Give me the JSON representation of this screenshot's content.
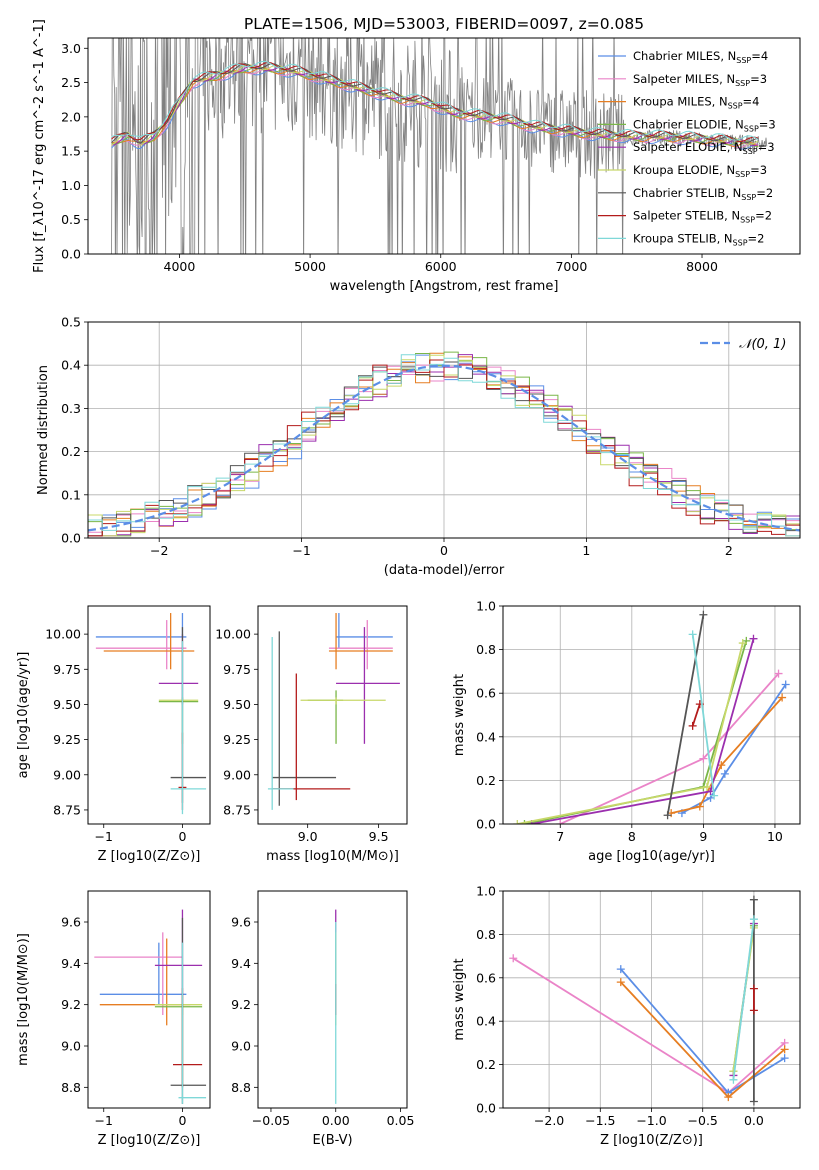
{
  "title": "PLATE=1506, MJD=53003, FIBERID=0097, z=0.085",
  "colors": {
    "c1": "#5b8ee6",
    "c2": "#ea84c8",
    "c3": "#e67e22",
    "c4": "#7ab648",
    "c5": "#9b2fae",
    "c6": "#c8d86a",
    "c7": "#555555",
    "c8": "#b31b1b",
    "c9": "#7fd8d8",
    "obs": "#808080",
    "dash": "#5b8ee6"
  },
  "chart_data": [
    {
      "id": "spectrum",
      "type": "line",
      "xlabel": "wavelength [Angstrom, rest frame]",
      "ylabel": "Flux [f_λ10^-17 erg cm^-2 s^-1 A^-1]",
      "xlim": [
        3300,
        8750
      ],
      "ylim": [
        0,
        3.15
      ],
      "xticks": [
        4000,
        5000,
        6000,
        7000,
        8000
      ],
      "yticks": [
        0.0,
        0.5,
        1.0,
        1.5,
        2.0,
        2.5,
        3.0
      ],
      "legend_position": "upper-right",
      "observed_spectrum_anchors": [
        [
          3480,
          1.6
        ],
        [
          3600,
          1.72
        ],
        [
          3700,
          1.6
        ],
        [
          3800,
          1.7
        ],
        [
          3900,
          1.9
        ],
        [
          4000,
          2.2
        ],
        [
          4100,
          2.5
        ],
        [
          4300,
          2.6
        ],
        [
          4500,
          2.7
        ],
        [
          4700,
          2.7
        ],
        [
          4900,
          2.65
        ],
        [
          5100,
          2.55
        ],
        [
          5300,
          2.45
        ],
        [
          5500,
          2.35
        ],
        [
          5700,
          2.25
        ],
        [
          5900,
          2.2
        ],
        [
          6100,
          2.05
        ],
        [
          6300,
          2.0
        ],
        [
          6500,
          1.95
        ],
        [
          6700,
          1.85
        ],
        [
          6900,
          1.8
        ],
        [
          7100,
          1.75
        ],
        [
          7300,
          1.72
        ],
        [
          7500,
          1.7
        ],
        [
          7700,
          1.7
        ],
        [
          7900,
          1.68
        ],
        [
          8100,
          1.65
        ],
        [
          8300,
          1.62
        ],
        [
          8500,
          1.6
        ]
      ],
      "models": [
        {
          "name": "Chabrier MILES",
          "nssp": 4,
          "color_key": "c1"
        },
        {
          "name": "Salpeter MILES",
          "nssp": 3,
          "color_key": "c2"
        },
        {
          "name": "Kroupa MILES",
          "nssp": 4,
          "color_key": "c3"
        },
        {
          "name": "Chabrier ELODIE",
          "nssp": 3,
          "color_key": "c4"
        },
        {
          "name": "Salpeter ELODIE",
          "nssp": 3,
          "color_key": "c5"
        },
        {
          "name": "Kroupa ELODIE",
          "nssp": 3,
          "color_key": "c6"
        },
        {
          "name": "Chabrier STELIB",
          "nssp": 2,
          "color_key": "c7"
        },
        {
          "name": "Salpeter STELIB",
          "nssp": 2,
          "color_key": "c8"
        },
        {
          "name": "Kroupa STELIB",
          "nssp": 2,
          "color_key": "c9"
        }
      ]
    },
    {
      "id": "residuals",
      "type": "step-histogram",
      "xlabel": "(data-model)/error",
      "ylabel": "Normed distribution",
      "xlim": [
        -2.5,
        2.5
      ],
      "ylim": [
        0,
        0.5
      ],
      "xticks": [
        -2,
        -1,
        0,
        1,
        2
      ],
      "yticks": [
        0.0,
        0.1,
        0.2,
        0.3,
        0.4,
        0.5
      ],
      "grid": true,
      "legend": "𝒩(0, 1)",
      "legend_position": "upper-right",
      "gaussian": {
        "mean": 0,
        "sigma": 1
      }
    },
    {
      "id": "age_vs_z",
      "type": "errorbar",
      "xlabel": "Z [log10(Z/Z⊙)]",
      "ylabel": "age  [log10(age/yr)]",
      "xlim": [
        -1.2,
        0.35
      ],
      "ylim": [
        8.65,
        10.2
      ],
      "xticks": [
        -1,
        0
      ],
      "yticks": [
        8.75,
        9.0,
        9.25,
        9.5,
        9.75,
        10.0
      ],
      "points": [
        {
          "c": "c1",
          "x": 0.0,
          "xl": -1.1,
          "xh": 0.05,
          "y": 9.98,
          "yl": 9.98,
          "yh": 10.15
        },
        {
          "c": "c2",
          "x": -0.2,
          "xl": -1.1,
          "xh": 0.05,
          "y": 9.9,
          "yl": 9.75,
          "yh": 10.1
        },
        {
          "c": "c3",
          "x": -0.15,
          "xl": -1.0,
          "xh": 0.15,
          "y": 9.88,
          "yl": 9.75,
          "yh": 10.15
        },
        {
          "c": "c4",
          "x": 0.0,
          "xl": -0.3,
          "xh": 0.2,
          "y": 9.52,
          "yl": 9.22,
          "yh": 9.55
        },
        {
          "c": "c5",
          "x": 0.0,
          "xl": -0.3,
          "xh": 0.2,
          "y": 9.65,
          "yl": 9.5,
          "yh": 10.0
        },
        {
          "c": "c6",
          "x": 0.0,
          "xl": -0.3,
          "xh": 0.2,
          "y": 9.53,
          "yl": 9.53,
          "yh": 9.55
        },
        {
          "c": "c7",
          "x": 0.0,
          "xl": -0.15,
          "xh": 0.3,
          "y": 8.98,
          "yl": 8.8,
          "yh": 10.05
        },
        {
          "c": "c8",
          "x": 0.0,
          "xl": -0.05,
          "xh": 0.05,
          "y": 8.91,
          "yl": 8.75,
          "yh": 9.3
        },
        {
          "c": "c9",
          "x": 0.0,
          "xl": -0.15,
          "xh": 0.3,
          "y": 8.9,
          "yl": 8.72,
          "yh": 9.95
        }
      ]
    },
    {
      "id": "age_vs_mass",
      "type": "errorbar",
      "xlabel": "mass [log10(M/M⊙)]",
      "ylabel": "",
      "xlim": [
        8.65,
        9.7
      ],
      "ylim": [
        8.65,
        10.2
      ],
      "xticks": [
        9.0,
        9.5
      ],
      "yticks": [
        8.75,
        9.0,
        9.25,
        9.5,
        9.75,
        10.0
      ],
      "points": [
        {
          "c": "c1",
          "x": 9.22,
          "xl": 9.2,
          "xh": 9.6,
          "y": 9.98,
          "yl": 9.9,
          "yh": 10.15
        },
        {
          "c": "c2",
          "x": 9.42,
          "xl": 9.15,
          "xh": 9.6,
          "y": 9.9,
          "yl": 9.75,
          "yh": 10.1
        },
        {
          "c": "c3",
          "x": 9.2,
          "xl": 9.15,
          "xh": 9.6,
          "y": 9.88,
          "yl": 9.75,
          "yh": 10.15
        },
        {
          "c": "c4",
          "x": 9.2,
          "xl": 9.0,
          "xh": 9.25,
          "y": 9.53,
          "yl": 9.22,
          "yh": 9.6
        },
        {
          "c": "c5",
          "x": 9.4,
          "xl": 9.2,
          "xh": 9.65,
          "y": 9.65,
          "yl": 9.22,
          "yh": 10.05
        },
        {
          "c": "c6",
          "x": 9.2,
          "xl": 8.95,
          "xh": 9.55,
          "y": 9.53,
          "yl": 9.5,
          "yh": 9.55
        },
        {
          "c": "c7",
          "x": 8.8,
          "xl": 8.75,
          "xh": 9.2,
          "y": 8.98,
          "yl": 8.78,
          "yh": 10.02
        },
        {
          "c": "c8",
          "x": 8.92,
          "xl": 8.75,
          "xh": 9.3,
          "y": 8.9,
          "yl": 8.82,
          "yh": 9.72
        },
        {
          "c": "c9",
          "x": 8.75,
          "xl": 8.72,
          "xh": 8.9,
          "y": 8.9,
          "yl": 8.75,
          "yh": 9.98
        }
      ]
    },
    {
      "id": "weight_vs_age",
      "type": "line",
      "xlabel": "age  [log10(age/yr)]",
      "ylabel": "mass weight",
      "xlim": [
        6.2,
        10.35
      ],
      "ylim": [
        0,
        1.0
      ],
      "xticks": [
        7,
        8,
        9,
        10
      ],
      "yticks": [
        0.0,
        0.2,
        0.4,
        0.6,
        0.8,
        1.0
      ],
      "grid": true,
      "series": [
        {
          "c": "c1",
          "pts": [
            [
              8.7,
              0.05
            ],
            [
              9.1,
              0.12
            ],
            [
              9.3,
              0.23
            ],
            [
              10.15,
              0.64
            ]
          ]
        },
        {
          "c": "c2",
          "pts": [
            [
              7.0,
              0.0
            ],
            [
              9.0,
              0.3
            ],
            [
              10.05,
              0.69
            ]
          ]
        },
        {
          "c": "c3",
          "pts": [
            [
              8.55,
              0.05
            ],
            [
              8.95,
              0.08
            ],
            [
              9.25,
              0.27
            ],
            [
              10.1,
              0.58
            ]
          ]
        },
        {
          "c": "c4",
          "pts": [
            [
              6.5,
              0.0
            ],
            [
              9.0,
              0.17
            ],
            [
              9.6,
              0.84
            ]
          ]
        },
        {
          "c": "c5",
          "pts": [
            [
              6.6,
              0.0
            ],
            [
              9.1,
              0.15
            ],
            [
              9.7,
              0.85
            ]
          ]
        },
        {
          "c": "c6",
          "pts": [
            [
              6.4,
              0.0
            ],
            [
              9.05,
              0.17
            ],
            [
              9.55,
              0.83
            ]
          ]
        },
        {
          "c": "c7",
          "pts": [
            [
              8.5,
              0.04
            ],
            [
              9.0,
              0.96
            ]
          ]
        },
        {
          "c": "c8",
          "pts": [
            [
              8.85,
              0.45
            ],
            [
              8.95,
              0.55
            ]
          ]
        },
        {
          "c": "c9",
          "pts": [
            [
              8.85,
              0.87
            ],
            [
              9.15,
              0.13
            ]
          ]
        }
      ]
    },
    {
      "id": "mass_vs_z",
      "type": "errorbar",
      "xlabel": "Z [log10(Z/Z⊙)]",
      "ylabel": "mass [log10(M/M⊙)]",
      "xlim": [
        -1.2,
        0.35
      ],
      "ylim": [
        8.7,
        9.75
      ],
      "xticks": [
        -1,
        0
      ],
      "yticks": [
        8.8,
        9.0,
        9.2,
        9.4,
        9.6
      ],
      "points": [
        {
          "c": "c1",
          "x": -0.3,
          "xl": -1.05,
          "xh": 0.05,
          "y": 9.25,
          "yl": 9.2,
          "yh": 9.5
        },
        {
          "c": "c2",
          "x": -0.25,
          "xl": -1.12,
          "xh": 0.0,
          "y": 9.43,
          "yl": 9.15,
          "yh": 9.55
        },
        {
          "c": "c3",
          "x": -0.2,
          "xl": -1.05,
          "xh": 0.1,
          "y": 9.2,
          "yl": 9.1,
          "yh": 9.52
        },
        {
          "c": "c4",
          "x": 0.0,
          "xl": -0.35,
          "xh": 0.25,
          "y": 9.19,
          "yl": 8.8,
          "yh": 9.2
        },
        {
          "c": "c5",
          "x": 0.0,
          "xl": -0.35,
          "xh": 0.25,
          "y": 9.39,
          "yl": 9.2,
          "yh": 9.66
        },
        {
          "c": "c6",
          "x": 0.0,
          "xl": -0.35,
          "xh": 0.25,
          "y": 9.2,
          "yl": 9.15,
          "yh": 9.25
        },
        {
          "c": "c7",
          "x": 0.0,
          "xl": -0.15,
          "xh": 0.3,
          "y": 8.81,
          "yl": 8.72,
          "yh": 9.62
        },
        {
          "c": "c8",
          "x": 0.0,
          "xl": -0.12,
          "xh": 0.25,
          "y": 8.91,
          "yl": 8.8,
          "yh": 9.28
        },
        {
          "c": "c9",
          "x": 0.0,
          "xl": -0.05,
          "xh": 0.3,
          "y": 8.75,
          "yl": 8.72,
          "yh": 9.5
        }
      ]
    },
    {
      "id": "mass_vs_ebv",
      "type": "errorbar",
      "xlabel": "E(B-V)",
      "ylabel": "",
      "xlim": [
        -0.06,
        0.055
      ],
      "ylim": [
        8.7,
        9.75
      ],
      "xticks": [
        -0.05,
        0.0,
        0.05
      ],
      "yticks": [
        8.8,
        9.0,
        9.2,
        9.4,
        9.6
      ],
      "points": [
        {
          "c": "c5",
          "x": 0.0,
          "xl": 0.0,
          "xh": 0.0,
          "y": 9.4,
          "yl": 9.2,
          "yh": 9.66
        },
        {
          "c": "c6",
          "x": 0.0,
          "xl": 0.0,
          "xh": 0.0,
          "y": 9.3,
          "yl": 9.1,
          "yh": 9.55
        },
        {
          "c": "c8",
          "x": 0.0,
          "xl": 0.0,
          "xh": 0.0,
          "y": 9.2,
          "yl": 9.15,
          "yh": 9.3
        },
        {
          "c": "c9",
          "x": 0.0,
          "xl": 0.0,
          "xh": 0.0,
          "y": 9.0,
          "yl": 8.72,
          "yh": 9.6
        }
      ]
    },
    {
      "id": "weight_vs_z",
      "type": "line",
      "xlabel": "Z [log10(Z/Z⊙)]",
      "ylabel": "mass weight",
      "xlim": [
        -2.45,
        0.45
      ],
      "ylim": [
        0,
        1.0
      ],
      "xticks": [
        -2.0,
        -1.5,
        -1.0,
        -0.5,
        0.0
      ],
      "yticks": [
        0.0,
        0.2,
        0.4,
        0.6,
        0.8,
        1.0
      ],
      "grid": true,
      "series": [
        {
          "c": "c2",
          "pts": [
            [
              -2.35,
              0.69
            ],
            [
              -0.25,
              0.07
            ],
            [
              0.3,
              0.3
            ]
          ]
        },
        {
          "c": "c1",
          "pts": [
            [
              -1.3,
              0.64
            ],
            [
              -0.25,
              0.07
            ],
            [
              0.3,
              0.23
            ]
          ]
        },
        {
          "c": "c3",
          "pts": [
            [
              -1.3,
              0.58
            ],
            [
              -0.25,
              0.05
            ],
            [
              0.3,
              0.27
            ]
          ]
        },
        {
          "c": "c4",
          "pts": [
            [
              -0.2,
              0.17
            ],
            [
              0.0,
              0.84
            ]
          ]
        },
        {
          "c": "c5",
          "pts": [
            [
              -0.2,
              0.15
            ],
            [
              0.0,
              0.85
            ]
          ]
        },
        {
          "c": "c6",
          "pts": [
            [
              -0.2,
              0.17
            ],
            [
              0.0,
              0.83
            ]
          ]
        },
        {
          "c": "c7",
          "pts": [
            [
              0.0,
              0.96
            ],
            [
              0.0,
              0.03
            ]
          ]
        },
        {
          "c": "c8",
          "pts": [
            [
              0.0,
              0.45
            ],
            [
              0.0,
              0.55
            ]
          ]
        },
        {
          "c": "c9",
          "pts": [
            [
              -0.2,
              0.13
            ],
            [
              0.0,
              0.87
            ]
          ]
        }
      ]
    }
  ]
}
